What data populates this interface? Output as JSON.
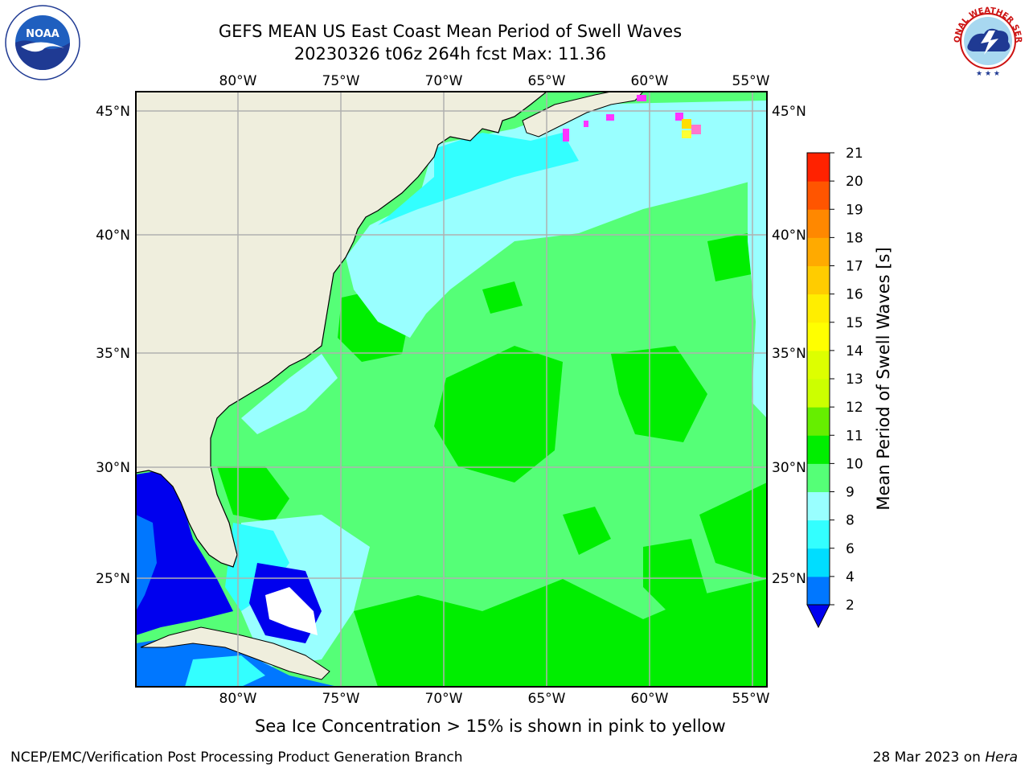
{
  "title": {
    "line1": "GEFS MEAN US East Coast Mean Period of Swell Waves",
    "line2": "20230326 t06z 264h fcst   Max: 11.36"
  },
  "map": {
    "lon_ticks": [
      "80°W",
      "75°W",
      "70°W",
      "65°W",
      "60°W",
      "55°W"
    ],
    "lat_ticks": [
      "45°N",
      "40°N",
      "35°N",
      "30°N",
      "25°N"
    ],
    "extent": {
      "lon": [
        -85,
        -54.5
      ],
      "lat": [
        20.5,
        45.8
      ]
    },
    "land_color": "#efeedd",
    "grid_color": "#b0b0b0",
    "regions": [
      {
        "name": "open-ocean",
        "period_class": "9-10",
        "color": "#55ff77"
      },
      {
        "name": "gulf-stream-patches",
        "period_class": "10-11",
        "color": "#00ee00"
      },
      {
        "name": "coastal-shelf",
        "period_class": "8-9",
        "color": "#99ffff"
      },
      {
        "name": "nearshore",
        "period_class": "6-8",
        "color": "#33ffff"
      },
      {
        "name": "gulf-of-mexico",
        "period_class": "2-4",
        "color": "#0000ee"
      },
      {
        "name": "caribbean",
        "period_class": "4-6",
        "color": "#0077ff"
      }
    ]
  },
  "colorbar": {
    "label": "Mean Period of Swell Waves [s]",
    "ticks": [
      "2",
      "4",
      "6",
      "8",
      "9",
      "10",
      "11",
      "12",
      "13",
      "14",
      "15",
      "16",
      "17",
      "18",
      "19",
      "20",
      "21"
    ],
    "colors": [
      "#0077ff",
      "#00ddff",
      "#33ffff",
      "#99ffff",
      "#55ff77",
      "#00ee00",
      "#66ee00",
      "#ccff00",
      "#ddff00",
      "#ffff00",
      "#ffee00",
      "#ffcc00",
      "#ffaa00",
      "#ff8800",
      "#ff5500",
      "#ff2200"
    ],
    "under_color": "#0000ee"
  },
  "ice_note": "Sea Ice Concentration > 15% is shown in pink to yellow",
  "footer": {
    "credit": "NCEP/EMC/Verification Post Processing Product Generation Branch",
    "date_prefix": "28 Mar 2023 on ",
    "machine": "Hera"
  },
  "logos": {
    "left": "NOAA",
    "right_text": "NATIONAL WEATHER SERVICE"
  }
}
